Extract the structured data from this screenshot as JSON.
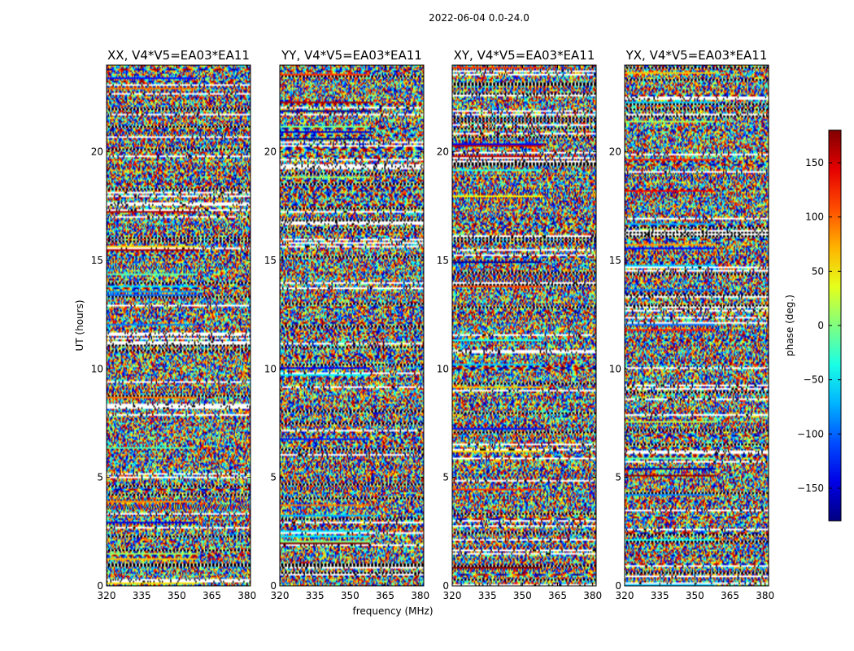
{
  "chart_data": {
    "type": "heatmap",
    "suptitle": "2022-06-04 0.0-24.0",
    "xlabel": "frequency (MHz)",
    "ylabel": "UT (hours)",
    "xlim": [
      320,
      381.5
    ],
    "ylim": [
      0,
      24
    ],
    "xticks": [
      320,
      335,
      350,
      365,
      380
    ],
    "yticks": [
      0,
      5,
      10,
      15,
      20
    ],
    "colormap": "jet",
    "colorbar": {
      "label": "phase (deg.)",
      "range": [
        -180,
        180
      ],
      "ticks": [
        -150,
        -100,
        -50,
        0,
        50,
        100,
        150
      ],
      "tick_labels": [
        "−150",
        "−100",
        "−50",
        "0",
        "50",
        "100",
        "150"
      ]
    },
    "panels": [
      {
        "title": "XX, V4*V5=EA03*EA11",
        "polarization": "XX"
      },
      {
        "title": "YY, V4*V5=EA03*EA11",
        "polarization": "YY"
      },
      {
        "title": "XY, V4*V5=EA03*EA11",
        "polarization": "XY"
      },
      {
        "title": "YX, V4*V5=EA03*EA11",
        "polarization": "YX"
      }
    ]
  }
}
